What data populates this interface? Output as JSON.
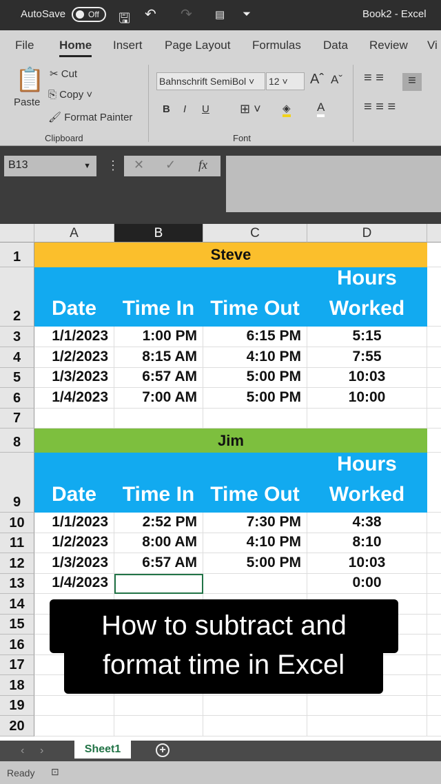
{
  "titlebar": {
    "autosave": "AutoSave",
    "autosave_state": "Off",
    "title": "Book2  -  Excel"
  },
  "tabs": [
    "File",
    "Home",
    "Insert",
    "Page Layout",
    "Formulas",
    "Data",
    "Review",
    "Vi"
  ],
  "ribbon": {
    "paste": "Paste",
    "cut": "Cut",
    "copy": "Copy",
    "format_painter": "Format Painter",
    "clipboard": "Clipboard",
    "font_name": "Bahnschrift SemiBol",
    "font_size": "12",
    "bold": "B",
    "italic": "I",
    "underline": "U",
    "font_group": "Font"
  },
  "formula_bar": {
    "name_box": "B13",
    "fx": "fx",
    "value": ""
  },
  "columns": [
    "A",
    "B",
    "C",
    "D"
  ],
  "selected_cell": "B13",
  "sections": [
    {
      "name": "Steve",
      "color": "#fbbf2c",
      "headers": [
        "Date",
        "Time In",
        "Time Out",
        "Hours Worked"
      ],
      "rows": [
        [
          "1/1/2023",
          "1:00 PM",
          "6:15 PM",
          "5:15"
        ],
        [
          "1/2/2023",
          "8:15 AM",
          "4:10 PM",
          "7:55"
        ],
        [
          "1/3/2023",
          "6:57 AM",
          "5:00 PM",
          "10:03"
        ],
        [
          "1/4/2023",
          "7:00 AM",
          "5:00 PM",
          "10:00"
        ]
      ]
    },
    {
      "name": "Jim",
      "color": "#7dbf3e",
      "headers": [
        "Date",
        "Time In",
        "Time Out",
        "Hours Worked"
      ],
      "rows": [
        [
          "1/1/2023",
          "2:52 PM",
          "7:30 PM",
          "4:38"
        ],
        [
          "1/2/2023",
          "8:00 AM",
          "4:10 PM",
          "8:10"
        ],
        [
          "1/3/2023",
          "6:57 AM",
          "5:00 PM",
          "10:03"
        ],
        [
          "1/4/2023",
          "",
          "",
          "0:00"
        ]
      ]
    }
  ],
  "row_numbers": [
    "1",
    "2",
    "3",
    "4",
    "5",
    "6",
    "7",
    "8",
    "9",
    "10",
    "11",
    "12",
    "13",
    "14",
    "15",
    "16",
    "17",
    "18",
    "19",
    "20"
  ],
  "caption": {
    "line1": "How to subtract and",
    "line2": "format time in Excel"
  },
  "sheet_tab": "Sheet1",
  "add_sheet": "+",
  "status": "Ready",
  "colors": {
    "header_blue": "#12aaf0",
    "excel_green": "#217346"
  }
}
